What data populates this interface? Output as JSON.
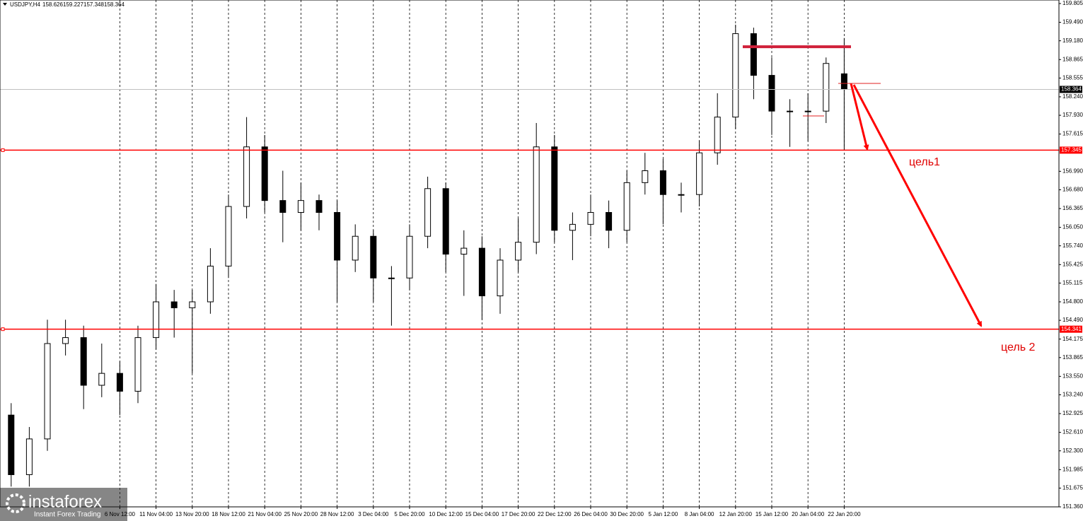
{
  "chart_data": {
    "type": "candlestick",
    "symbol": "USDJPY,H4",
    "categories": [
      null,
      null,
      null,
      null,
      null,
      null,
      "6 Nov 12:00",
      null,
      "11 Nov 04:00",
      null,
      "13 Nov 20:00",
      null,
      "18 Nov 12:00",
      null,
      "21 Nov 04:00",
      null,
      "25 Nov 20:00",
      null,
      "28 Nov 12:00",
      null,
      "3 Dec 04:00",
      null,
      "5 Dec 20:00",
      null,
      "10 Dec 12:00",
      null,
      "15 Dec 04:00",
      null,
      "17 Dec 20:00",
      null,
      "22 Dec 12:00",
      null,
      "26 Dec 04:00",
      null,
      "30 Dec 20:00",
      null,
      "5 Jan 12:00",
      null,
      "8 Jan 04:00",
      null,
      "12 Jan 20:00",
      null,
      "15 Jan 12:00",
      null,
      "20 Jan 04:00",
      null,
      "22 Jan 20:00"
    ],
    "open": [
      152.9,
      151.9,
      152.5,
      154.1,
      154.2,
      153.4,
      153.6,
      153.3,
      154.2,
      154.8,
      154.7,
      154.8,
      155.4,
      156.4,
      157.4,
      156.5,
      156.3,
      156.5,
      156.3,
      155.5,
      155.9,
      155.2,
      155.2,
      155.9,
      156.7,
      155.6,
      155.7,
      154.9,
      155.5,
      155.8,
      157.4,
      156.0,
      156.1,
      156.3,
      156.0,
      156.8,
      157.0,
      156.6,
      156.6,
      157.3,
      157.9,
      159.3,
      158.6,
      158.0,
      158.0,
      158.0,
      158.626
    ],
    "high": [
      153.1,
      152.7,
      154.5,
      154.5,
      154.4,
      154.1,
      153.8,
      154.4,
      155.1,
      155.0,
      155.0,
      155.7,
      156.6,
      157.9,
      157.6,
      157.0,
      156.8,
      156.6,
      156.5,
      156.1,
      156.0,
      155.4,
      156.1,
      156.9,
      156.8,
      156.0,
      155.9,
      155.7,
      156.2,
      157.8,
      157.6,
      156.3,
      156.6,
      156.5,
      157.0,
      157.3,
      157.2,
      156.8,
      157.5,
      158.3,
      159.45,
      159.4,
      158.9,
      158.2,
      158.3,
      158.9,
      159.227
    ],
    "low": [
      151.7,
      151.7,
      152.3,
      153.9,
      153.0,
      153.2,
      152.9,
      153.1,
      154.0,
      154.2,
      153.6,
      154.6,
      155.2,
      156.2,
      156.3,
      155.8,
      156.0,
      156.0,
      154.8,
      155.3,
      154.8,
      154.4,
      155.0,
      155.7,
      155.3,
      154.9,
      154.5,
      154.6,
      155.3,
      155.6,
      155.8,
      155.5,
      155.9,
      155.7,
      155.8,
      156.6,
      156.1,
      156.3,
      156.4,
      157.1,
      157.7,
      158.2,
      157.6,
      157.4,
      157.5,
      157.8,
      157.348
    ],
    "close": [
      151.9,
      152.5,
      154.1,
      154.2,
      153.4,
      153.6,
      153.3,
      154.2,
      154.8,
      154.7,
      154.8,
      155.4,
      156.4,
      157.4,
      156.5,
      156.3,
      156.5,
      156.3,
      155.5,
      155.9,
      155.2,
      155.2,
      155.9,
      156.7,
      155.6,
      155.7,
      154.9,
      155.5,
      155.8,
      157.4,
      156.0,
      156.1,
      156.3,
      156.0,
      156.8,
      157.0,
      156.6,
      156.6,
      157.3,
      157.9,
      159.3,
      158.6,
      158.0,
      158.0,
      158.0,
      158.8,
      158.364
    ],
    "ylim": [
      151.36,
      159.805
    ],
    "yticks": [
      159.805,
      {
        "value": 159.49,
        "label": "159.490"
      },
      {
        "value": 159.18,
        "label": "159.180"
      },
      158.865,
      158.555,
      {
        "value": 158.24,
        "label": "158.240"
      },
      {
        "value": 157.93,
        "label": "157.930"
      },
      157.615,
      {
        "value": 156.99,
        "label": "156.990"
      },
      {
        "value": 156.68,
        "label": "156.680"
      },
      156.365,
      {
        "value": 156.05,
        "label": "156.050"
      },
      {
        "value": 155.74,
        "label": "155.740"
      },
      155.425,
      155.115,
      {
        "value": 154.8,
        "label": "154.800"
      },
      {
        "value": 154.49,
        "label": "154.490"
      },
      154.175,
      153.865,
      {
        "value": 153.55,
        "label": "153.550"
      },
      {
        "value": 153.24,
        "label": "153.240"
      },
      152.925,
      {
        "value": 152.61,
        "label": "152.610"
      },
      {
        "value": 152.3,
        "label": "152.300"
      },
      151.985,
      151.675,
      {
        "value": 151.36,
        "label": "151.360"
      }
    ],
    "levels": [
      157.345,
      154.341
    ],
    "level_color": "#ff0000",
    "marked_level": 159.08,
    "annotations": [
      "цель1",
      "цель 2"
    ],
    "logo": {
      "name": "instaforex",
      "tagline": "Instant Forex Trading"
    }
  }
}
